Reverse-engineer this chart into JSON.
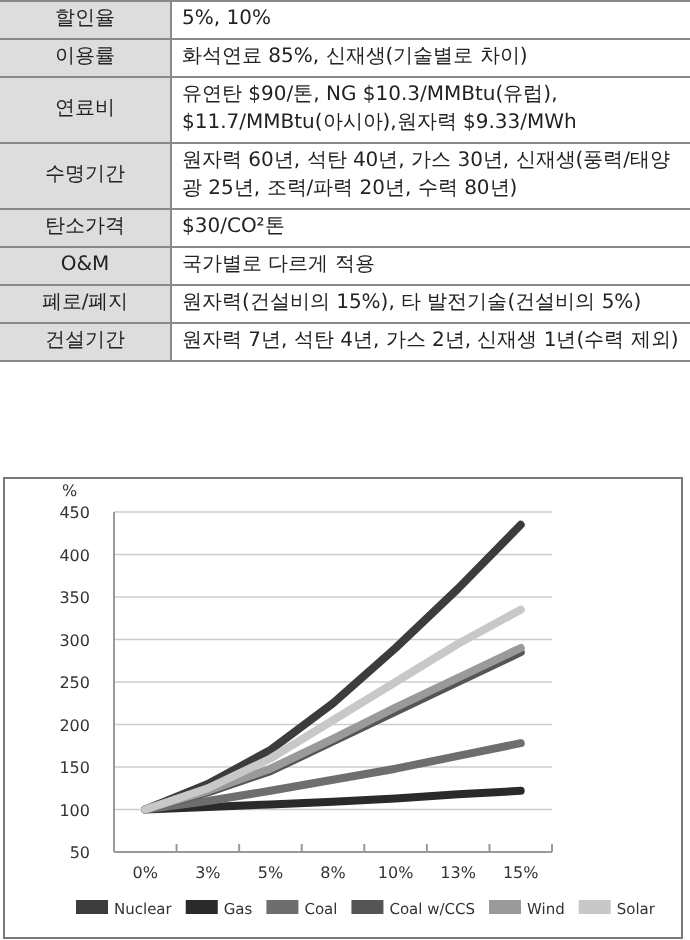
{
  "chart_data": [
    {
      "type": "other",
      "annotations": [
        "할인율",
        "5%, 10%",
        "이용률",
        "화석연료 85%, 신재생(기술별로 차이)",
        "연료비",
        "유연탄 $90/톤, NG $10.3/MMBtu(유럽), $11.7/MMBtu(아시아),원자력 $9.33/MWh",
        "수명기간",
        "원자력 60년, 석탄 40년, 가스 30년, 신재생(풍력/태양광 25년, 조력/파력 20년, 수력 80년)",
        "탄소가격",
        "$30/CO²톤",
        "O&M",
        "국가별로 다르게 적용",
        "폐로/폐지",
        "원자력(건설비의 15%), 타 발전기술(건설비의 5%)",
        "건설기간",
        "원자력 7년, 석탄 4년, 가스 2년, 신재생 1년(수력 제외)"
      ]
    },
    {
      "type": "line",
      "ylabel": "%",
      "categories": [
        "0%",
        "3%",
        "5%",
        "8%",
        "10%",
        "13%",
        "15%"
      ],
      "ylim": [
        50,
        450
      ],
      "yticks": [
        50,
        100,
        150,
        200,
        250,
        300,
        350,
        400,
        450
      ],
      "grid": "y",
      "legend": "bottom",
      "marker": "none",
      "line_style": "solid",
      "series": [
        {
          "name": "Nuclear",
          "color": "#3c3c3c",
          "values": [
            100,
            130,
            170,
            225,
            290,
            360,
            435
          ]
        },
        {
          "name": "Gas",
          "color": "#2a2a2a",
          "values": [
            100,
            103,
            106,
            109,
            113,
            118,
            122
          ]
        },
        {
          "name": "Coal",
          "color": "#6e6e6e",
          "values": [
            100,
            110,
            122,
            135,
            148,
            163,
            178
          ]
        },
        {
          "name": "Coal w/CCS",
          "color": "#555555",
          "values": [
            100,
            120,
            145,
            180,
            215,
            250,
            285
          ]
        },
        {
          "name": "Wind",
          "color": "#9a9a9a",
          "values": [
            100,
            122,
            148,
            183,
            220,
            255,
            290
          ]
        },
        {
          "name": "Solar",
          "color": "#c8c8c8",
          "values": [
            100,
            125,
            160,
            205,
            250,
            295,
            335
          ]
        }
      ]
    }
  ]
}
